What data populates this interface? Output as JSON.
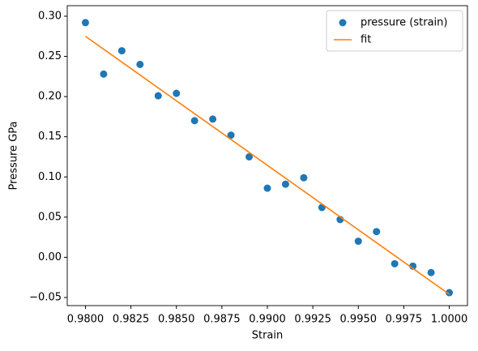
{
  "chart_data": {
    "type": "scatter",
    "xlabel": "Strain",
    "ylabel": "Pressure GPa",
    "xlim": [
      0.979,
      1.001
    ],
    "ylim": [
      -0.0601,
      0.3131
    ],
    "xticks": [
      {
        "value": 0.98,
        "label": "0.9800"
      },
      {
        "value": 0.9825,
        "label": "0.9825"
      },
      {
        "value": 0.985,
        "label": "0.9850"
      },
      {
        "value": 0.9875,
        "label": "0.9875"
      },
      {
        "value": 0.99,
        "label": "0.9900"
      },
      {
        "value": 0.9925,
        "label": "0.9925"
      },
      {
        "value": 0.995,
        "label": "0.9950"
      },
      {
        "value": 0.9975,
        "label": "0.9975"
      },
      {
        "value": 1.0,
        "label": "1.0000"
      }
    ],
    "yticks": [
      {
        "value": -0.05,
        "label": "−0.05"
      },
      {
        "value": 0.0,
        "label": "0.00"
      },
      {
        "value": 0.05,
        "label": "0.05"
      },
      {
        "value": 0.1,
        "label": "0.10"
      },
      {
        "value": 0.15,
        "label": "0.15"
      },
      {
        "value": 0.2,
        "label": "0.20"
      },
      {
        "value": 0.25,
        "label": "0.25"
      },
      {
        "value": 0.3,
        "label": "0.30"
      }
    ],
    "legend": "upper right",
    "series": [
      {
        "name": "pressure (strain)",
        "type": "scatter",
        "color": "#1f77b4",
        "x": [
          0.98,
          0.981,
          0.982,
          0.983,
          0.984,
          0.985,
          0.986,
          0.987,
          0.988,
          0.989,
          0.99,
          0.991,
          0.992,
          0.993,
          0.994,
          0.995,
          0.996,
          0.997,
          0.998,
          0.999,
          1.0
        ],
        "values": [
          0.292,
          0.228,
          0.257,
          0.24,
          0.201,
          0.204,
          0.17,
          0.172,
          0.152,
          0.125,
          0.086,
          0.091,
          0.099,
          0.062,
          0.047,
          0.02,
          0.032,
          -0.008,
          -0.011,
          -0.019,
          -0.044
        ]
      },
      {
        "name": "fit",
        "type": "line",
        "color": "#ff7f0e",
        "x": [
          0.98,
          1.0
        ],
        "values": [
          0.275,
          -0.046
        ]
      }
    ]
  }
}
